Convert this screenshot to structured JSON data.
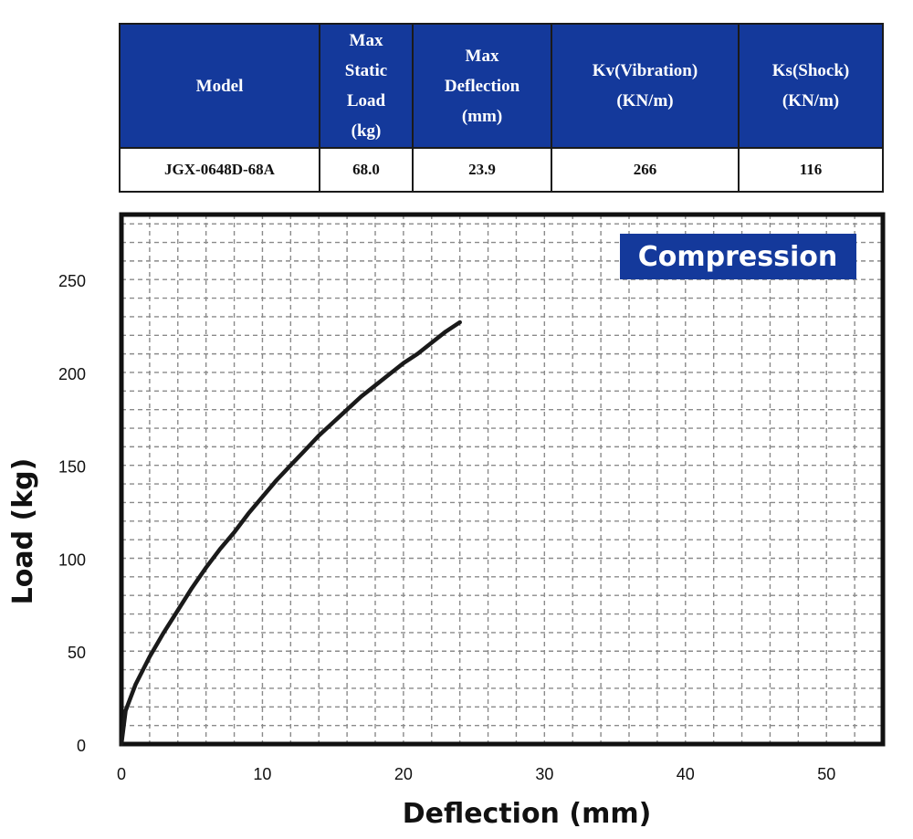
{
  "spec_table": {
    "headers": [
      [
        "Model"
      ],
      [
        "Max",
        "Static",
        "Load",
        "(kg)"
      ],
      [
        "Max",
        "Deflection",
        "(mm)"
      ],
      [
        "Kv(Vibration)",
        "(KN/m)"
      ],
      [
        "Ks(Shock)",
        "(KN/m)"
      ]
    ],
    "row": [
      "JGX-0648D-68A",
      "68.0",
      "23.9",
      "266",
      "116"
    ]
  },
  "colors": {
    "header_bg": "#14399b",
    "legend_bg": "#14399b",
    "curve": "#1a1a1a",
    "grid": "#8a8a8a"
  },
  "chart_data": {
    "type": "line",
    "title": "",
    "xlabel": "Deflection (mm)",
    "ylabel": "Load (kg)",
    "xlim": [
      0,
      54
    ],
    "ylim": [
      0,
      285
    ],
    "xticks": [
      0,
      10,
      20,
      30,
      40,
      50
    ],
    "yticks": [
      0,
      50,
      100,
      150,
      200,
      250
    ],
    "grid": true,
    "legend_placement": "top-right",
    "series": [
      {
        "name": "Compression",
        "x": [
          0,
          0.3,
          1,
          2,
          3,
          4,
          5,
          6,
          7,
          8,
          9,
          10,
          11,
          12,
          13,
          14,
          15,
          16,
          17,
          18,
          19,
          20,
          21,
          22,
          23,
          24
        ],
        "y": [
          0,
          18,
          32,
          47,
          60,
          72,
          84,
          95,
          105,
          114,
          124,
          133,
          142,
          150,
          158,
          166,
          173,
          180,
          187,
          193,
          199,
          205,
          210,
          216,
          222,
          227
        ]
      }
    ]
  }
}
